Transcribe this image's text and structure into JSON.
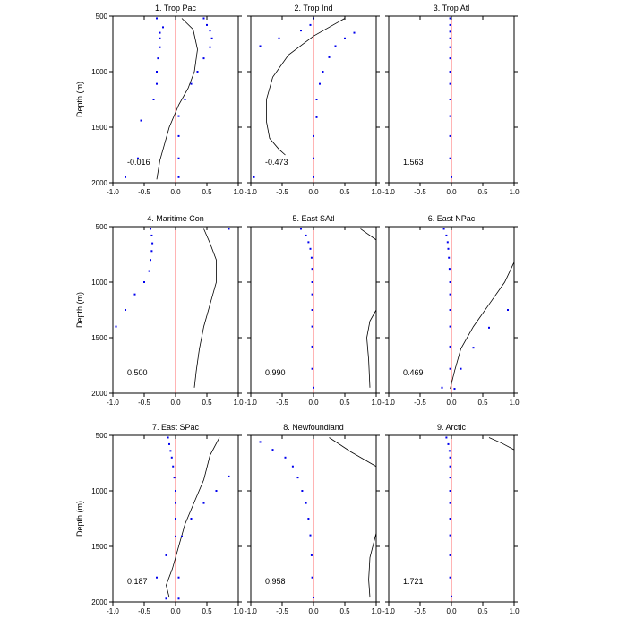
{
  "chart_data": {
    "type": "line",
    "layout": "3x3 panel grid",
    "ylabel": "Depth (m)",
    "xlim": [
      -1.0,
      1.0
    ],
    "ylim": [
      500,
      2000
    ],
    "y_inverted": true,
    "xticks": [
      "-1.0",
      "-0.5",
      "0.0",
      "0.5",
      "1.0"
    ],
    "yticks": [
      "500",
      "1000",
      "1500",
      "2000"
    ],
    "colors": {
      "zero_line": "#ff6a6a",
      "dots": "#0000ee",
      "profile": "#000000",
      "axes": "#000000"
    },
    "panels": [
      {
        "title": "1. Trop Pac",
        "value_label": "-0.016",
        "dots": [
          [
            -0.3,
            520
          ],
          [
            -0.2,
            600
          ],
          [
            -0.25,
            650
          ],
          [
            -0.25,
            700
          ],
          [
            -0.25,
            780
          ],
          [
            -0.28,
            880
          ],
          [
            -0.3,
            1000
          ],
          [
            -0.3,
            1110
          ],
          [
            -0.35,
            1250
          ],
          [
            -0.55,
            1440
          ],
          [
            0.05,
            1580
          ],
          [
            -0.6,
            1780
          ],
          [
            -0.8,
            1950
          ],
          [
            0.45,
            520
          ],
          [
            0.5,
            580
          ],
          [
            0.55,
            630
          ],
          [
            0.58,
            700
          ],
          [
            0.55,
            780
          ],
          [
            0.45,
            880
          ],
          [
            0.35,
            1000
          ],
          [
            0.25,
            1110
          ],
          [
            0.15,
            1250
          ],
          [
            0.05,
            1400
          ],
          [
            0.05,
            1780
          ],
          [
            0.05,
            1950
          ]
        ],
        "profile": [
          [
            0.1,
            520
          ],
          [
            0.28,
            620
          ],
          [
            0.35,
            800
          ],
          [
            0.3,
            1000
          ],
          [
            0.2,
            1150
          ],
          [
            0.05,
            1300
          ],
          [
            -0.1,
            1500
          ],
          [
            -0.25,
            1800
          ],
          [
            -0.3,
            1970
          ]
        ]
      },
      {
        "title": "2. Trop Ind",
        "value_label": "-0.473",
        "dots": [
          [
            0.0,
            520
          ],
          [
            -0.05,
            580
          ],
          [
            -0.55,
            700
          ],
          [
            -0.2,
            630
          ],
          [
            -0.85,
            770
          ],
          [
            -0.95,
            1950
          ],
          [
            0.65,
            650
          ],
          [
            0.5,
            700
          ],
          [
            0.35,
            770
          ],
          [
            0.25,
            870
          ],
          [
            0.15,
            1000
          ],
          [
            0.1,
            1110
          ],
          [
            0.05,
            1250
          ],
          [
            0.05,
            1410
          ],
          [
            0.0,
            1580
          ],
          [
            0.0,
            1780
          ],
          [
            0.0,
            1950
          ]
        ],
        "profile": [
          [
            0.5,
            520
          ],
          [
            0.0,
            680
          ],
          [
            -0.4,
            850
          ],
          [
            -0.65,
            1050
          ],
          [
            -0.75,
            1250
          ],
          [
            -0.75,
            1450
          ],
          [
            -0.7,
            1600
          ],
          [
            -0.55,
            1700
          ],
          [
            -0.45,
            1750
          ]
        ]
      },
      {
        "title": "3. Trop Atl",
        "value_label": "1.563",
        "dots": [
          [
            -0.02,
            520
          ],
          [
            -0.02,
            580
          ],
          [
            -0.02,
            640
          ],
          [
            -0.02,
            700
          ],
          [
            -0.02,
            780
          ],
          [
            -0.02,
            880
          ],
          [
            -0.02,
            1000
          ],
          [
            -0.02,
            1110
          ],
          [
            -0.02,
            1250
          ],
          [
            -0.02,
            1400
          ],
          [
            -0.02,
            1580
          ],
          [
            -0.02,
            1780
          ],
          [
            0.0,
            1950
          ]
        ],
        "profile": []
      },
      {
        "title": "4. Maritime Con",
        "value_label": "0.500",
        "dots": [
          [
            -0.4,
            520
          ],
          [
            -0.38,
            580
          ],
          [
            -0.37,
            650
          ],
          [
            -0.38,
            720
          ],
          [
            -0.4,
            800
          ],
          [
            -0.42,
            900
          ],
          [
            -0.5,
            1000
          ],
          [
            -0.65,
            1110
          ],
          [
            -0.8,
            1250
          ],
          [
            -0.95,
            1400
          ],
          [
            0.85,
            520
          ]
        ],
        "profile": [
          [
            0.45,
            520
          ],
          [
            0.55,
            650
          ],
          [
            0.65,
            800
          ],
          [
            0.65,
            1000
          ],
          [
            0.55,
            1200
          ],
          [
            0.45,
            1400
          ],
          [
            0.38,
            1600
          ],
          [
            0.33,
            1800
          ],
          [
            0.3,
            1950
          ]
        ]
      },
      {
        "title": "5. East SAtl",
        "value_label": "0.990",
        "dots": [
          [
            -0.2,
            520
          ],
          [
            -0.12,
            580
          ],
          [
            -0.08,
            640
          ],
          [
            -0.05,
            700
          ],
          [
            -0.03,
            780
          ],
          [
            -0.02,
            880
          ],
          [
            -0.02,
            1000
          ],
          [
            -0.02,
            1110
          ],
          [
            -0.02,
            1250
          ],
          [
            -0.02,
            1400
          ],
          [
            -0.02,
            1580
          ],
          [
            -0.02,
            1780
          ],
          [
            0.0,
            1950
          ]
        ],
        "profile": [
          [
            0.75,
            520
          ],
          [
            0.85,
            560
          ],
          [
            1.0,
            620
          ]
        ],
        "profile2": [
          [
            1.0,
            1250
          ],
          [
            0.9,
            1350
          ],
          [
            0.85,
            1500
          ],
          [
            0.88,
            1700
          ],
          [
            0.9,
            1950
          ]
        ]
      },
      {
        "title": "6. East NPac",
        "value_label": "0.469",
        "dots": [
          [
            -0.12,
            520
          ],
          [
            -0.08,
            580
          ],
          [
            -0.06,
            640
          ],
          [
            -0.05,
            700
          ],
          [
            -0.04,
            780
          ],
          [
            -0.03,
            880
          ],
          [
            -0.02,
            1000
          ],
          [
            -0.02,
            1110
          ],
          [
            -0.02,
            1250
          ],
          [
            -0.02,
            1400
          ],
          [
            -0.02,
            1580
          ],
          [
            -0.02,
            1780
          ],
          [
            -0.15,
            1950
          ],
          [
            0.05,
            1960
          ],
          [
            0.35,
            1590
          ],
          [
            0.6,
            1410
          ],
          [
            0.9,
            1250
          ],
          [
            0.15,
            1780
          ]
        ],
        "profile": [
          [
            1.0,
            820
          ],
          [
            0.85,
            1000
          ],
          [
            0.6,
            1200
          ],
          [
            0.35,
            1400
          ],
          [
            0.15,
            1600
          ],
          [
            0.05,
            1800
          ],
          [
            -0.02,
            1960
          ]
        ]
      },
      {
        "title": "7. East SPac",
        "value_label": "0.187",
        "dots": [
          [
            -0.12,
            520
          ],
          [
            -0.1,
            580
          ],
          [
            -0.08,
            640
          ],
          [
            -0.06,
            700
          ],
          [
            -0.04,
            780
          ],
          [
            -0.02,
            880
          ],
          [
            0.0,
            1000
          ],
          [
            0.0,
            1110
          ],
          [
            0.0,
            1250
          ],
          [
            0.0,
            1410
          ],
          [
            -0.15,
            1580
          ],
          [
            -0.3,
            1780
          ],
          [
            -0.15,
            1970
          ],
          [
            0.05,
            1970
          ],
          [
            0.05,
            1780
          ],
          [
            0.1,
            1410
          ],
          [
            0.25,
            1250
          ],
          [
            0.45,
            1110
          ],
          [
            0.65,
            1000
          ],
          [
            0.85,
            870
          ]
        ],
        "profile": [
          [
            0.7,
            520
          ],
          [
            0.55,
            680
          ],
          [
            0.45,
            900
          ],
          [
            0.3,
            1100
          ],
          [
            0.15,
            1300
          ],
          [
            0.05,
            1500
          ],
          [
            -0.05,
            1700
          ],
          [
            -0.15,
            1850
          ],
          [
            -0.1,
            1960
          ]
        ]
      },
      {
        "title": "8. Newfoundland",
        "value_label": "0.958",
        "dots": [
          [
            -0.85,
            560
          ],
          [
            -0.65,
            630
          ],
          [
            -0.45,
            700
          ],
          [
            -0.33,
            780
          ],
          [
            -0.25,
            880
          ],
          [
            -0.18,
            1000
          ],
          [
            -0.12,
            1110
          ],
          [
            -0.08,
            1250
          ],
          [
            -0.05,
            1400
          ],
          [
            -0.03,
            1580
          ],
          [
            -0.02,
            1780
          ],
          [
            0.0,
            1960
          ]
        ],
        "profile": [
          [
            0.25,
            520
          ],
          [
            0.6,
            650
          ],
          [
            1.0,
            780
          ]
        ],
        "profile2": [
          [
            1.0,
            1380
          ],
          [
            0.9,
            1600
          ],
          [
            0.88,
            1800
          ],
          [
            0.9,
            1960
          ]
        ]
      },
      {
        "title": "9. Arctic",
        "value_label": "1.721",
        "dots": [
          [
            -0.08,
            520
          ],
          [
            -0.05,
            580
          ],
          [
            -0.03,
            640
          ],
          [
            -0.02,
            700
          ],
          [
            -0.02,
            780
          ],
          [
            -0.02,
            880
          ],
          [
            -0.02,
            1000
          ],
          [
            -0.02,
            1110
          ],
          [
            -0.02,
            1250
          ],
          [
            -0.02,
            1400
          ],
          [
            -0.02,
            1580
          ],
          [
            -0.02,
            1780
          ],
          [
            0.0,
            1950
          ]
        ],
        "profile": [
          [
            0.6,
            520
          ],
          [
            0.8,
            570
          ],
          [
            1.0,
            630
          ]
        ]
      }
    ]
  }
}
